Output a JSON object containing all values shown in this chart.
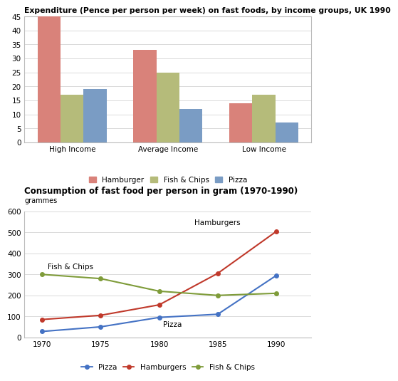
{
  "bar_title": "Expenditure (Pence per person per week) on fast foods, by income groups, UK 1990",
  "bar_categories": [
    "High Income",
    "Average Income",
    "Low Income"
  ],
  "bar_series": {
    "Hamburger": [
      45,
      33,
      14
    ],
    "Fish & Chips": [
      17,
      25,
      17
    ],
    "Pizza": [
      19,
      12,
      7
    ]
  },
  "bar_colors": {
    "Hamburger": "#d9827a",
    "Fish & Chips": "#b5bb7a",
    "Pizza": "#7a9cc4"
  },
  "bar_ylim": [
    0,
    45
  ],
  "bar_yticks": [
    0,
    5,
    10,
    15,
    20,
    25,
    30,
    35,
    40,
    45
  ],
  "line_title": "Consumption of fast food per person in gram (1970-1990)",
  "line_ylabel": "grammes",
  "line_years": [
    1970,
    1975,
    1980,
    1985,
    1990
  ],
  "line_series": {
    "Pizza": [
      28,
      50,
      95,
      110,
      295
    ],
    "Hamburgers": [
      85,
      105,
      155,
      305,
      505
    ],
    "Fish & Chips": [
      300,
      280,
      220,
      200,
      210
    ]
  },
  "line_colors": {
    "Pizza": "#4472c4",
    "Hamburgers": "#c0392b",
    "Fish & Chips": "#7f9c3a"
  },
  "line_ylim": [
    0,
    600
  ],
  "line_yticks": [
    0,
    100,
    200,
    300,
    400,
    500,
    600
  ],
  "background_color": "#ffffff"
}
